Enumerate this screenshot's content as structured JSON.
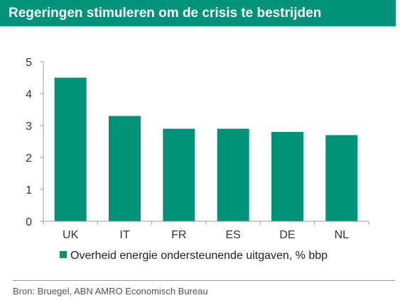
{
  "chart_data": {
    "type": "bar",
    "title": "Regeringen stimuleren om de crisis te bestrijden",
    "categories": [
      "UK",
      "IT",
      "FR",
      "ES",
      "DE",
      "NL"
    ],
    "series": [
      {
        "name": "Overheid energie ondersteunende uitgaven, % bbp",
        "values": [
          4.5,
          3.3,
          2.9,
          2.9,
          2.8,
          2.7
        ]
      }
    ],
    "ylim": [
      0,
      5
    ],
    "yticks": [
      "0",
      "1",
      "2",
      "3",
      "4",
      "5"
    ],
    "grid": false,
    "legend_position": "bottom",
    "bar_color": "#00937a",
    "title_bar_color": "#00937a"
  },
  "source": "Bron: Bruegel, ABN AMRO Economisch Bureau"
}
